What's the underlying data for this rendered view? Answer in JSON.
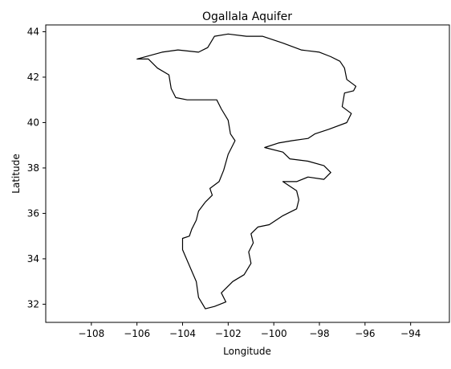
{
  "figure": {
    "title": "Ogallala Aquifer",
    "xlabel": "Longitude",
    "ylabel": "Latitude"
  },
  "chart_data": {
    "type": "map-outline",
    "title": "Ogallala Aquifer",
    "xlabel": "Longitude",
    "ylabel": "Latitude",
    "xlim": [
      -110.0,
      -92.3
    ],
    "ylim": [
      31.2,
      44.3
    ],
    "x_ticks": [
      -108,
      -106,
      -104,
      -102,
      -100,
      -98,
      -96,
      -94
    ],
    "x_tick_labels": [
      "−108",
      "−106",
      "−104",
      "−102",
      "−100",
      "−98",
      "−96",
      "−94"
    ],
    "y_ticks": [
      32,
      34,
      36,
      38,
      40,
      42,
      44
    ],
    "y_tick_labels": [
      "32",
      "34",
      "36",
      "38",
      "40",
      "42",
      "44"
    ],
    "grid": false,
    "colors": {
      "outline": "#000000",
      "fill": "none",
      "axes": "#000000",
      "background": "#ffffff"
    },
    "feature": "Ogallala Aquifer boundary",
    "polygon": [
      [
        -102.6,
        43.8
      ],
      [
        -102.0,
        43.9
      ],
      [
        -101.2,
        43.8
      ],
      [
        -100.5,
        43.8
      ],
      [
        -99.6,
        43.5
      ],
      [
        -98.8,
        43.2
      ],
      [
        -98.0,
        43.1
      ],
      [
        -97.5,
        42.9
      ],
      [
        -97.1,
        42.7
      ],
      [
        -96.9,
        42.4
      ],
      [
        -96.8,
        41.9
      ],
      [
        -96.4,
        41.6
      ],
      [
        -96.5,
        41.4
      ],
      [
        -96.9,
        41.3
      ],
      [
        -97.0,
        40.7
      ],
      [
        -96.6,
        40.4
      ],
      [
        -96.8,
        40.0
      ],
      [
        -97.6,
        39.7
      ],
      [
        -98.2,
        39.5
      ],
      [
        -98.5,
        39.3
      ],
      [
        -99.2,
        39.2
      ],
      [
        -99.8,
        39.1
      ],
      [
        -100.4,
        38.9
      ],
      [
        -99.6,
        38.7
      ],
      [
        -99.3,
        38.4
      ],
      [
        -98.5,
        38.3
      ],
      [
        -97.8,
        38.1
      ],
      [
        -97.5,
        37.8
      ],
      [
        -97.8,
        37.5
      ],
      [
        -98.5,
        37.6
      ],
      [
        -99.0,
        37.4
      ],
      [
        -99.6,
        37.4
      ],
      [
        -99.0,
        37.0
      ],
      [
        -98.9,
        36.6
      ],
      [
        -99.0,
        36.2
      ],
      [
        -99.6,
        35.9
      ],
      [
        -100.2,
        35.5
      ],
      [
        -100.7,
        35.4
      ],
      [
        -101.0,
        35.1
      ],
      [
        -100.9,
        34.7
      ],
      [
        -101.1,
        34.3
      ],
      [
        -101.0,
        33.8
      ],
      [
        -101.3,
        33.3
      ],
      [
        -101.8,
        33.0
      ],
      [
        -102.3,
        32.5
      ],
      [
        -102.1,
        32.1
      ],
      [
        -102.6,
        31.9
      ],
      [
        -103.0,
        31.8
      ],
      [
        -103.3,
        32.3
      ],
      [
        -103.4,
        33.0
      ],
      [
        -103.7,
        33.7
      ],
      [
        -104.0,
        34.4
      ],
      [
        -104.0,
        34.9
      ],
      [
        -103.7,
        35.0
      ],
      [
        -103.6,
        35.3
      ],
      [
        -103.4,
        35.7
      ],
      [
        -103.3,
        36.1
      ],
      [
        -103.0,
        36.5
      ],
      [
        -102.7,
        36.8
      ],
      [
        -102.8,
        37.1
      ],
      [
        -102.4,
        37.4
      ],
      [
        -102.2,
        37.9
      ],
      [
        -102.0,
        38.6
      ],
      [
        -101.7,
        39.2
      ],
      [
        -101.9,
        39.5
      ],
      [
        -102.0,
        40.1
      ],
      [
        -102.3,
        40.6
      ],
      [
        -102.5,
        41.0
      ],
      [
        -103.8,
        41.0
      ],
      [
        -104.3,
        41.1
      ],
      [
        -104.5,
        41.5
      ],
      [
        -104.6,
        42.1
      ],
      [
        -105.1,
        42.4
      ],
      [
        -105.5,
        42.8
      ],
      [
        -106.0,
        42.8
      ],
      [
        -104.9,
        43.1
      ],
      [
        -104.2,
        43.2
      ],
      [
        -103.3,
        43.1
      ],
      [
        -102.9,
        43.3
      ],
      [
        -102.6,
        43.8
      ]
    ]
  }
}
